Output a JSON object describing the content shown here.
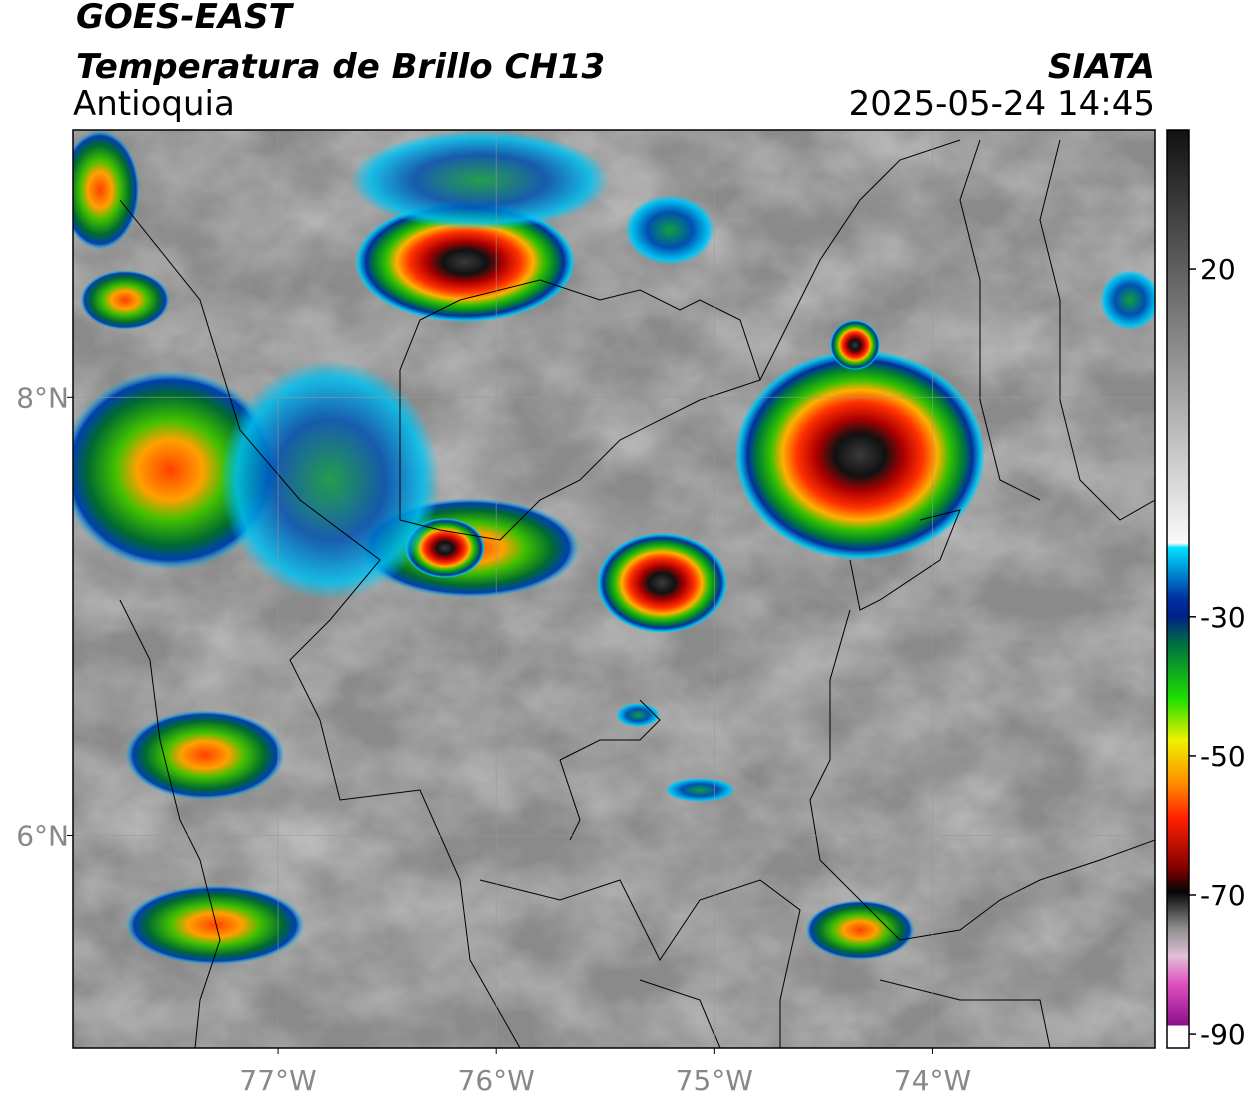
{
  "header": {
    "satellite": "GOES-EAST",
    "product": "Temperatura de Brillo CH13",
    "region": "Antioquia",
    "source": "SIATA",
    "datetime": "2025-05-24 14:45"
  },
  "map": {
    "xlim": [
      -77.94,
      -72.98
    ],
    "ylim": [
      5.03,
      9.22
    ],
    "xticks": [
      {
        "value": -77,
        "label": "77°W"
      },
      {
        "value": -76,
        "label": "76°W"
      },
      {
        "value": -75,
        "label": "75°W"
      },
      {
        "value": -74,
        "label": "74°W"
      }
    ],
    "yticks": [
      {
        "value": 6,
        "label": "6°N"
      },
      {
        "value": 8,
        "label": "8°N"
      }
    ],
    "grid": true
  },
  "colorbar": {
    "lim": [
      -92,
      40
    ],
    "ticks": [
      20,
      -30,
      -50,
      -70,
      -90
    ]
  }
}
